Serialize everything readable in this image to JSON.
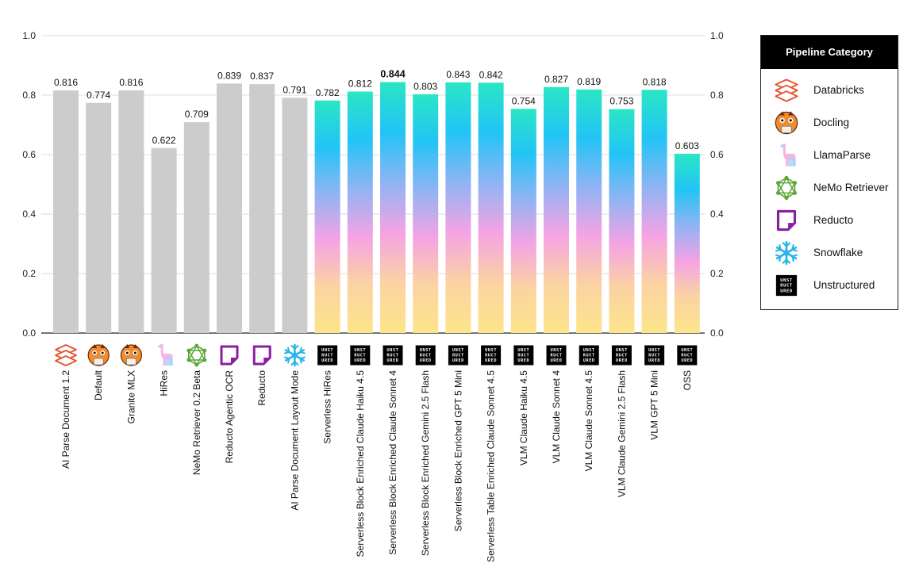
{
  "chart_data": {
    "type": "bar",
    "ylim": [
      0,
      1.0
    ],
    "yticks": [
      "0.0",
      "0.2",
      "0.4",
      "0.6",
      "0.8",
      "1.0"
    ],
    "grid": true,
    "legend_position": "right",
    "categories": [
      "AI Parse Document 1.2",
      "Default",
      "Granite MLX",
      "HiRes",
      "NeMo Retriever 0.2 Beta",
      "Reducto Agentic OCR",
      "Reducto",
      "AI Parse Document Layout Mode",
      "Serverless HiRes",
      "Serverless Block Enriched Claude Haiku 4.5",
      "Serverless Block Enriched Claude Sonnet 4",
      "Serverless Block Enriched Gemini 2.5 Flash",
      "Serverless Block Enriched GPT 5 Mini",
      "Serverless Table Enriched Claude Sonnet 4.5",
      "VLM Claude Haiku 4.5",
      "VLM Claude  Sonnet 4",
      "VLM Claude Sonnet 4.5",
      "VLM Claude  Gemini 2.5 Flash",
      "VLM  GPT 5 Mini",
      "OSS"
    ],
    "values": [
      0.816,
      0.774,
      0.816,
      0.622,
      0.709,
      0.839,
      0.837,
      0.791,
      0.782,
      0.812,
      0.844,
      0.803,
      0.843,
      0.842,
      0.754,
      0.827,
      0.819,
      0.753,
      0.818,
      0.603
    ],
    "value_labels": [
      "0.816",
      "0.774",
      "0.816",
      "0.622",
      "0.709",
      "0.839",
      "0.837",
      "0.791",
      "0.782",
      "0.812",
      "0.844",
      "0.803",
      "0.843",
      "0.842",
      "0.754",
      "0.827",
      "0.819",
      "0.753",
      "0.818",
      "0.603"
    ],
    "pipelines": [
      "Databricks",
      "Docling",
      "Docling",
      "LlamaParse",
      "NeMo Retriever",
      "Reducto",
      "Reducto",
      "Snowflake",
      "Unstructured",
      "Unstructured",
      "Unstructured",
      "Unstructured",
      "Unstructured",
      "Unstructured",
      "Unstructured",
      "Unstructured",
      "Unstructured",
      "Unstructured",
      "Unstructured",
      "Unstructured"
    ],
    "highlight_index": 10,
    "legend": {
      "title": "Pipeline Category",
      "items": [
        "Databricks",
        "Docling",
        "LlamaParse",
        "NeMo Retriever",
        "Reducto",
        "Snowflake",
        "Unstructured"
      ]
    },
    "colors": {
      "baseline_bar": "#cccccc",
      "gradient": [
        "#2ae6c4",
        "#22c4f6",
        "#8fb4f4",
        "#f5a3e4",
        "#fbd3a2",
        "#fde58a"
      ],
      "grid": "#dddddd",
      "axis": "#222222"
    }
  },
  "icons": {
    "Databricks": "databricks-icon",
    "Docling": "docling-icon",
    "LlamaParse": "llamaparse-icon",
    "NeMo Retriever": "nemo-retriever-icon",
    "Reducto": "reducto-icon",
    "Snowflake": "snowflake-icon",
    "Unstructured": "unstructured-icon"
  },
  "unstructured_logo_text": [
    "UNST",
    "RUCT",
    "URED"
  ]
}
